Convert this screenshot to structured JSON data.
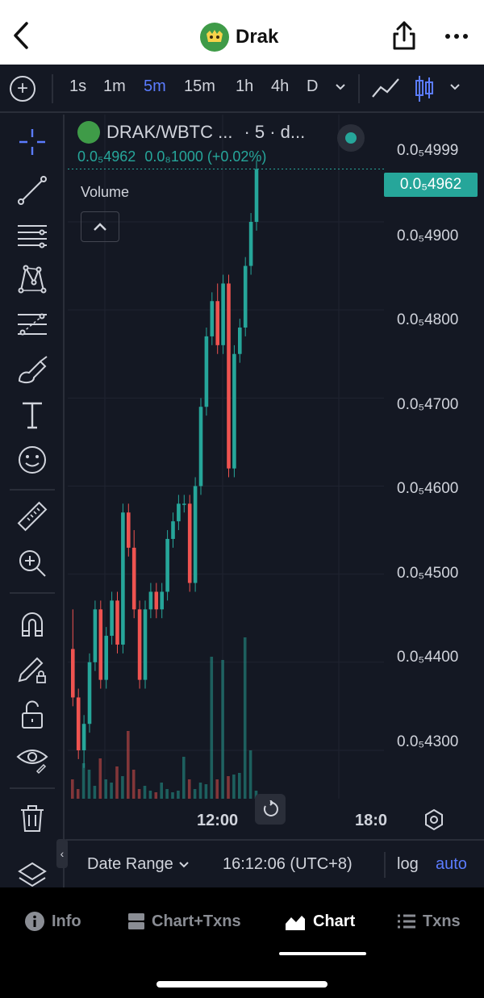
{
  "header": {
    "title": "Drak"
  },
  "chart_toolbar": {
    "intervals": [
      "1s",
      "1m",
      "5m",
      "15m",
      "1h",
      "4h",
      "D"
    ],
    "active_interval": "5m"
  },
  "legend": {
    "symbol": "DRAK/WBTC ...",
    "meta": "· 5 · d...",
    "price": "0.0₅4962",
    "change": "0.0₈1000 (+0.02%)",
    "volume_label": "Volume"
  },
  "price_axis": {
    "labels": [
      "0.0₅4999",
      "0.0₅4900",
      "0.0₅4800",
      "0.0₅4700",
      "0.0₅4600",
      "0.0₅4500",
      "0.0₅4400",
      "0.0₅4300"
    ],
    "current_price": "0.0₅4962"
  },
  "time_axis": {
    "labels": [
      "12:00",
      "18:0"
    ]
  },
  "bottom_bar": {
    "date_range": "Date Range",
    "clock": "16:12:06 (UTC+8)",
    "log": "log",
    "auto": "auto"
  },
  "tabs": [
    {
      "label": "Info",
      "icon": "info-icon"
    },
    {
      "label": "Chart+Txns",
      "icon": "split-icon"
    },
    {
      "label": "Chart",
      "icon": "area-chart-icon"
    },
    {
      "label": "Txns",
      "icon": "list-icon"
    }
  ],
  "active_tab": "Chart",
  "colors": {
    "up": "#26a69a",
    "down": "#ef5350",
    "accent": "#5b7cff",
    "background": "#141823"
  },
  "chart_data": {
    "type": "candlestick",
    "interval": "5m",
    "ylim": [
      4.245e-05,
      5.02e-05
    ],
    "candles": [
      {
        "o": 4.415e-05,
        "h": 4.46e-05,
        "l": 4.35e-05,
        "c": 4.36e-05
      },
      {
        "o": 4.36e-05,
        "h": 4.37e-05,
        "l": 4.29e-05,
        "c": 4.3e-05
      },
      {
        "o": 4.3e-05,
        "h": 4.34e-05,
        "l": 4.28e-05,
        "c": 4.33e-05
      },
      {
        "o": 4.33e-05,
        "h": 4.41e-05,
        "l": 4.32e-05,
        "c": 4.4e-05
      },
      {
        "o": 4.4e-05,
        "h": 4.47e-05,
        "l": 4.39e-05,
        "c": 4.46e-05
      },
      {
        "o": 4.46e-05,
        "h": 4.47e-05,
        "l": 4.37e-05,
        "c": 4.38e-05
      },
      {
        "o": 4.38e-05,
        "h": 4.44e-05,
        "l": 4.37e-05,
        "c": 4.43e-05
      },
      {
        "o": 4.43e-05,
        "h": 4.48e-05,
        "l": 4.42e-05,
        "c": 4.47e-05
      },
      {
        "o": 4.47e-05,
        "h": 4.48e-05,
        "l": 4.41e-05,
        "c": 4.42e-05
      },
      {
        "o": 4.42e-05,
        "h": 4.58e-05,
        "l": 4.41e-05,
        "c": 4.57e-05
      },
      {
        "o": 4.57e-05,
        "h": 4.58e-05,
        "l": 4.52e-05,
        "c": 4.53e-05
      },
      {
        "o": 4.53e-05,
        "h": 4.55e-05,
        "l": 4.45e-05,
        "c": 4.46e-05
      },
      {
        "o": 4.46e-05,
        "h": 4.47e-05,
        "l": 4.37e-05,
        "c": 4.38e-05
      },
      {
        "o": 4.38e-05,
        "h": 4.47e-05,
        "l": 4.37e-05,
        "c": 4.46e-05
      },
      {
        "o": 4.46e-05,
        "h": 4.49e-05,
        "l": 4.45e-05,
        "c": 4.48e-05
      },
      {
        "o": 4.48e-05,
        "h": 4.49e-05,
        "l": 4.45e-05,
        "c": 4.46e-05
      },
      {
        "o": 4.46e-05,
        "h": 4.49e-05,
        "l": 4.45e-05,
        "c": 4.48e-05
      },
      {
        "o": 4.48e-05,
        "h": 4.55e-05,
        "l": 4.47e-05,
        "c": 4.54e-05
      },
      {
        "o": 4.54e-05,
        "h": 4.57e-05,
        "l": 4.53e-05,
        "c": 4.56e-05
      },
      {
        "o": 4.56e-05,
        "h": 4.59e-05,
        "l": 4.55e-05,
        "c": 4.58e-05
      },
      {
        "o": 4.58e-05,
        "h": 4.59e-05,
        "l": 4.57e-05,
        "c": 4.58e-05
      },
      {
        "o": 4.58e-05,
        "h": 4.59e-05,
        "l": 4.48e-05,
        "c": 4.49e-05
      },
      {
        "o": 4.49e-05,
        "h": 4.61e-05,
        "l": 4.48e-05,
        "c": 4.6e-05
      },
      {
        "o": 4.6e-05,
        "h": 4.7e-05,
        "l": 4.59e-05,
        "c": 4.69e-05
      },
      {
        "o": 4.69e-05,
        "h": 4.78e-05,
        "l": 4.68e-05,
        "c": 4.77e-05
      },
      {
        "o": 4.77e-05,
        "h": 4.82e-05,
        "l": 4.76e-05,
        "c": 4.81e-05
      },
      {
        "o": 4.81e-05,
        "h": 4.83e-05,
        "l": 4.75e-05,
        "c": 4.76e-05
      },
      {
        "o": 4.76e-05,
        "h": 4.84e-05,
        "l": 4.75e-05,
        "c": 4.83e-05
      },
      {
        "o": 4.83e-05,
        "h": 4.84e-05,
        "l": 4.61e-05,
        "c": 4.62e-05
      },
      {
        "o": 4.62e-05,
        "h": 4.76e-05,
        "l": 4.61e-05,
        "c": 4.75e-05
      },
      {
        "o": 4.75e-05,
        "h": 4.79e-05,
        "l": 4.74e-05,
        "c": 4.78e-05
      },
      {
        "o": 4.78e-05,
        "h": 4.86e-05,
        "l": 4.77e-05,
        "c": 4.85e-05
      },
      {
        "o": 4.85e-05,
        "h": 4.91e-05,
        "l": 4.84e-05,
        "c": 4.9e-05
      },
      {
        "o": 4.9e-05,
        "h": 4.97e-05,
        "l": 4.89e-05,
        "c": 4.96e-05
      }
    ],
    "volumes": [
      0.12,
      0.06,
      0.22,
      0.18,
      0.08,
      0.25,
      0.12,
      0.1,
      0.2,
      0.14,
      0.42,
      0.18,
      0.06,
      0.08,
      0.05,
      0.04,
      0.1,
      0.06,
      0.04,
      0.05,
      0.26,
      0.12,
      0.06,
      0.1,
      0.09,
      0.88,
      0.12,
      0.86,
      0.14,
      0.15,
      0.16,
      1.0,
      0.3,
      0.05
    ]
  }
}
